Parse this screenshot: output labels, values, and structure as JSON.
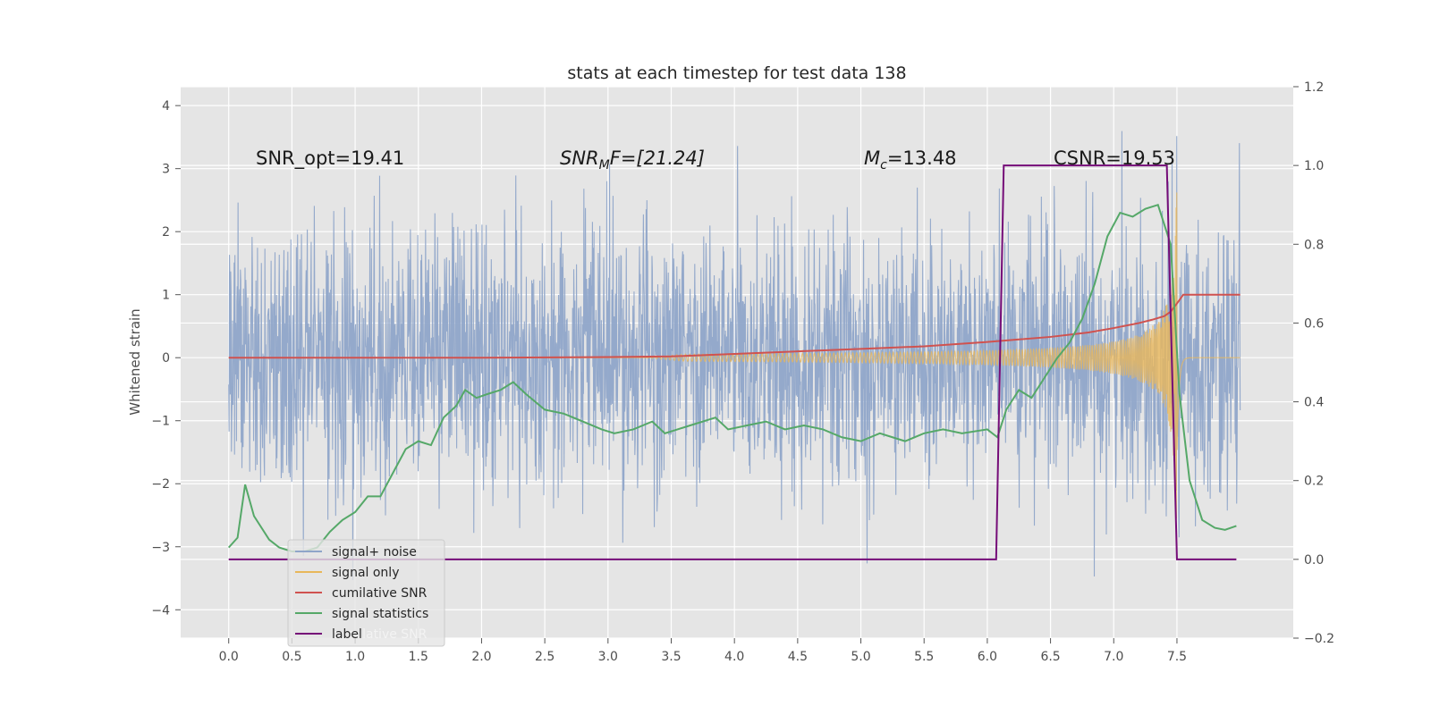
{
  "chart_data": {
    "type": "line",
    "title": "stats at each timestep for test data 138",
    "ylabel": "Whitened strain",
    "xlabel": "",
    "xlim": [
      -0.38,
      8.42
    ],
    "ylim_left": [
      -4.45,
      4.3
    ],
    "ylim_right": [
      -0.2,
      1.2
    ],
    "x_ticks": [
      "0.0",
      "0.5",
      "1.0",
      "1.5",
      "2.0",
      "2.5",
      "3.0",
      "3.5",
      "4.0",
      "4.5",
      "5.0",
      "5.5",
      "6.0",
      "6.5",
      "7.0",
      "7.5"
    ],
    "y_left_ticks": [
      "4",
      "3",
      "2",
      "1",
      "0",
      "−1",
      "−2",
      "−3",
      "−4"
    ],
    "y_right_ticks": [
      "1.2",
      "1.0",
      "0.8",
      "0.6",
      "0.4",
      "0.2",
      "0.0",
      "−0.2"
    ],
    "annotations": {
      "snr_opt": "SNR_opt=19.41",
      "snr_mf_base": "SNR",
      "snr_mf_sub": "M",
      "snr_mf_rest": "F=[21.24]",
      "mc_base": "M",
      "mc_sub": "c",
      "mc_rest": "=13.48",
      "csnr": "CSNR=19.53"
    },
    "legend": {
      "position": "lower-left",
      "entries": [
        "signal+ noise",
        "signal only",
        "cumilative SNR",
        "signal statistics",
        "label"
      ],
      "ghost_text": "cumilative SNR"
    },
    "series": [
      {
        "name": "signal+ noise",
        "axis": "left",
        "color": "#8fa5c9",
        "description": "whitened noisy strain, amplitude about ±2, peaks to ±4",
        "x_range": [
          0.0,
          8.0
        ],
        "envelope": 1.0
      },
      {
        "name": "signal only",
        "axis": "left",
        "color": "#e8b75a",
        "description": "chirp, growing amplitude until merger near t=7.5",
        "chirp": {
          "start": 3.3,
          "merger": 7.5,
          "peak_amplitude": 3.0,
          "end": 8.0
        }
      },
      {
        "name": "cumilative SNR",
        "axis": "left",
        "color": "#d0524f",
        "x": [
          0.0,
          1.0,
          2.0,
          3.0,
          3.5,
          4.0,
          4.5,
          5.0,
          5.5,
          6.0,
          6.5,
          6.8,
          7.0,
          7.2,
          7.3,
          7.4,
          7.45,
          7.5,
          7.55,
          8.0
        ],
        "y": [
          0.0,
          0.0,
          0.0,
          0.01,
          0.02,
          0.06,
          0.1,
          0.14,
          0.18,
          0.25,
          0.33,
          0.4,
          0.47,
          0.55,
          0.6,
          0.66,
          0.73,
          0.86,
          1.0,
          1.0
        ]
      },
      {
        "name": "signal statistics",
        "axis": "right",
        "color": "#55a868",
        "x": [
          0.0,
          0.07,
          0.13,
          0.2,
          0.32,
          0.4,
          0.5,
          0.6,
          0.7,
          0.8,
          0.9,
          1.0,
          1.1,
          1.2,
          1.3,
          1.4,
          1.5,
          1.6,
          1.7,
          1.8,
          1.87,
          1.96,
          2.05,
          2.15,
          2.25,
          2.35,
          2.5,
          2.65,
          2.8,
          2.95,
          3.05,
          3.2,
          3.35,
          3.45,
          3.55,
          3.65,
          3.75,
          3.85,
          3.95,
          4.1,
          4.25,
          4.4,
          4.55,
          4.7,
          4.85,
          5.0,
          5.15,
          5.25,
          5.35,
          5.5,
          5.65,
          5.8,
          6.0,
          6.08,
          6.15,
          6.25,
          6.35,
          6.45,
          6.55,
          6.65,
          6.75,
          6.85,
          6.95,
          7.05,
          7.15,
          7.25,
          7.35,
          7.45,
          7.52,
          7.6,
          7.7,
          7.8,
          7.88,
          7.97
        ],
        "y": [
          0.03,
          0.055,
          0.19,
          0.11,
          0.05,
          0.03,
          0.02,
          0.02,
          0.03,
          0.07,
          0.1,
          0.12,
          0.16,
          0.16,
          0.22,
          0.28,
          0.3,
          0.29,
          0.36,
          0.39,
          0.43,
          0.41,
          0.42,
          0.43,
          0.45,
          0.42,
          0.38,
          0.37,
          0.35,
          0.33,
          0.32,
          0.33,
          0.35,
          0.32,
          0.33,
          0.34,
          0.35,
          0.36,
          0.33,
          0.34,
          0.35,
          0.33,
          0.34,
          0.33,
          0.31,
          0.3,
          0.32,
          0.31,
          0.3,
          0.32,
          0.33,
          0.32,
          0.33,
          0.31,
          0.38,
          0.43,
          0.41,
          0.46,
          0.51,
          0.55,
          0.61,
          0.7,
          0.82,
          0.88,
          0.87,
          0.89,
          0.9,
          0.8,
          0.42,
          0.2,
          0.1,
          0.08,
          0.075,
          0.085
        ]
      },
      {
        "name": "label",
        "axis": "right",
        "color": "#750c78",
        "x": [
          0.0,
          6.07,
          6.13,
          7.42,
          7.5,
          7.97
        ],
        "y": [
          0.0,
          0.0,
          1.0,
          1.0,
          0.0,
          0.0
        ]
      }
    ]
  },
  "colors": {
    "plot_bg": "#e5e5e5",
    "grid": "#ffffff",
    "text": "#262626"
  }
}
